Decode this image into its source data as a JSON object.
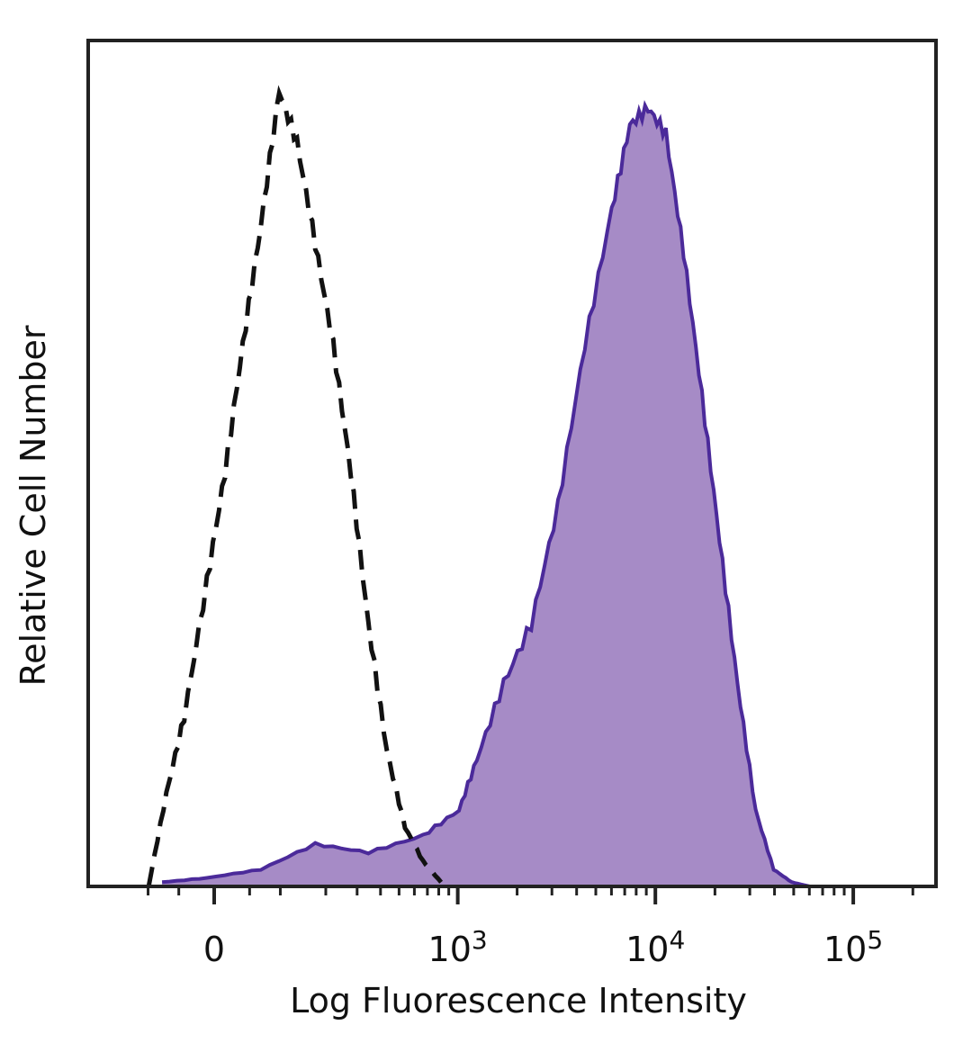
{
  "chart_data": {
    "type": "area",
    "xlabel": "Log Fluorescence Intensity",
    "ylabel": "Relative Cell Number",
    "x_scale": "biexponential",
    "xlim": [
      -130,
      200000
    ],
    "ylim": [
      0,
      105
    ],
    "grid": false,
    "x_ticks": [
      {
        "value": 0,
        "base": "0",
        "exp": ""
      },
      {
        "value": 1000,
        "base": "10",
        "exp": "3"
      },
      {
        "value": 10000,
        "base": "10",
        "exp": "4"
      },
      {
        "value": 100000,
        "base": "10",
        "exp": "5"
      }
    ],
    "series": [
      {
        "style": "dashed-outline",
        "color": "#111111",
        "x": [
          -99,
          -69,
          -42,
          -10,
          15,
          40,
          67,
          98,
          132,
          173,
          221,
          277,
          345,
          432,
          537,
          664,
          822
        ],
        "y": [
          0,
          11,
          20,
          36,
          49,
          64,
          78,
          94,
          88,
          76,
          64,
          49,
          31,
          16,
          7,
          3,
          0.5
        ]
      },
      {
        "style": "filled",
        "color": "#4b2a9a",
        "fill": "#a68bc6",
        "x": [
          -76,
          -10,
          67,
          173,
          345,
          664,
          1015,
          1250,
          1710,
          2360,
          3220,
          4400,
          6020,
          7430,
          9190,
          11300,
          13900,
          17200,
          21100,
          26000,
          32100,
          39600,
          48900,
          60200
        ],
        "y": [
          0.5,
          1,
          2,
          5,
          4,
          6,
          9,
          15,
          24,
          31,
          45,
          64,
          80,
          90,
          92,
          89,
          75,
          58,
          41,
          24,
          9,
          2,
          0.5,
          0
        ]
      }
    ]
  }
}
